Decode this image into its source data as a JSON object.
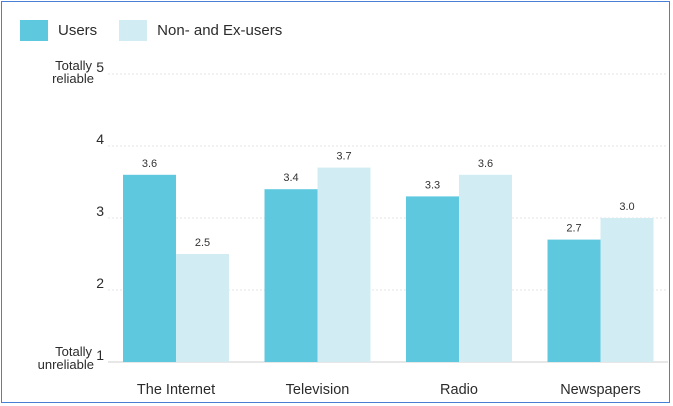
{
  "chart_data": {
    "type": "bar",
    "categories": [
      "The Internet",
      "Television",
      "Radio",
      "Newspapers"
    ],
    "series": [
      {
        "name": "Users",
        "color": "#5ec8df",
        "values": [
          3.6,
          3.4,
          3.3,
          2.7
        ]
      },
      {
        "name": "Non- and Ex-users",
        "color": "#d2ecf4",
        "values": [
          2.5,
          3.7,
          3.6,
          3.0
        ]
      }
    ],
    "data_labels": [
      [
        "3.6",
        "3.4",
        "3.3",
        "2.7"
      ],
      [
        "2.5",
        "3.7",
        "3.6",
        "3.0"
      ]
    ],
    "y_ticks": [
      1,
      2,
      3,
      4,
      5
    ],
    "y_tick_labels": {
      "top": {
        "number": "5",
        "lines": [
          "Totally",
          "reliable"
        ]
      },
      "bottom": {
        "number": "1",
        "lines": [
          "Totally",
          "unreliable"
        ]
      }
    },
    "ylim": [
      1,
      5
    ],
    "grid": true,
    "legend_position": "top-left"
  }
}
